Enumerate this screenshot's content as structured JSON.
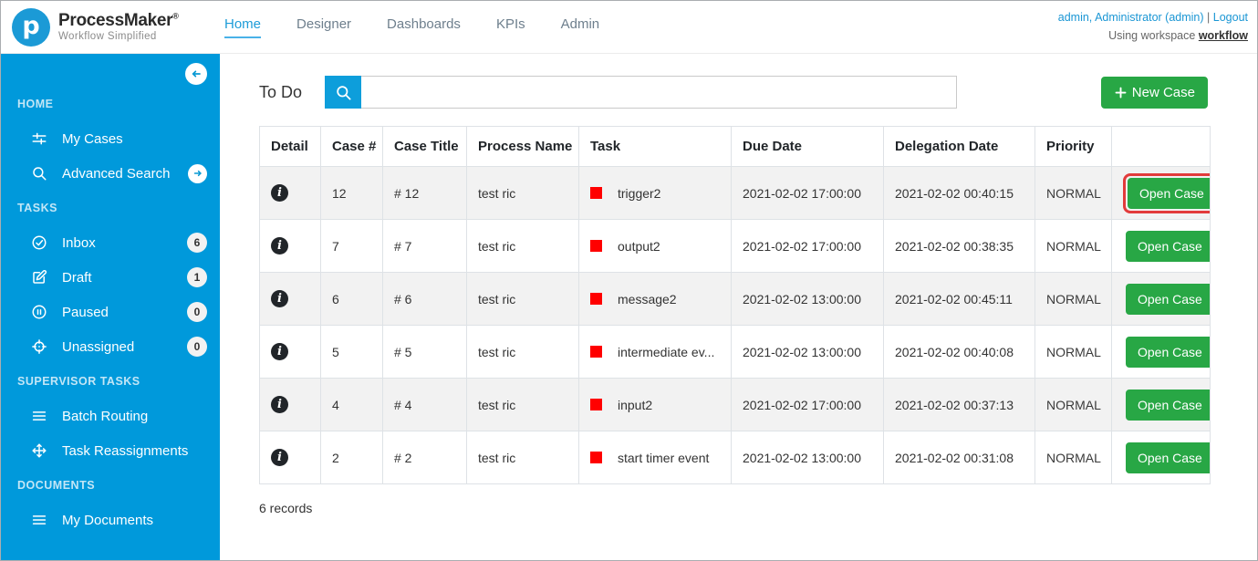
{
  "header": {
    "logo": {
      "brand": "ProcessMaker",
      "reg": "®",
      "tagline": "Workflow Simplified"
    },
    "nav": [
      {
        "label": "Home",
        "active": true
      },
      {
        "label": "Designer",
        "active": false
      },
      {
        "label": "Dashboards",
        "active": false
      },
      {
        "label": "KPIs",
        "active": false
      },
      {
        "label": "Admin",
        "active": false
      }
    ],
    "user": {
      "name": "admin, Administrator (admin)",
      "sep": "|",
      "logout": "Logout",
      "workspace_prefix": "Using workspace",
      "workspace_name": "workflow"
    }
  },
  "sidebar": {
    "sections": [
      {
        "title": "HOME",
        "items": [
          {
            "label": "My Cases",
            "icon": "sliders"
          },
          {
            "label": "Advanced Search",
            "icon": "search",
            "chevron": true
          }
        ]
      },
      {
        "title": "TASKS",
        "items": [
          {
            "label": "Inbox",
            "icon": "check-circle",
            "badge": "6"
          },
          {
            "label": "Draft",
            "icon": "edit",
            "badge": "1"
          },
          {
            "label": "Paused",
            "icon": "pause-circle",
            "badge": "0"
          },
          {
            "label": "Unassigned",
            "icon": "target",
            "badge": "0"
          }
        ]
      },
      {
        "title": "SUPERVISOR TASKS",
        "items": [
          {
            "label": "Batch Routing",
            "icon": "menu"
          },
          {
            "label": "Task Reassignments",
            "icon": "move"
          }
        ]
      },
      {
        "title": "DOCUMENTS",
        "items": [
          {
            "label": "My Documents",
            "icon": "menu"
          }
        ]
      }
    ]
  },
  "main": {
    "page_title": "To Do",
    "search": {
      "value": "",
      "placeholder": ""
    },
    "new_case_label": "New Case",
    "table": {
      "columns": [
        "Detail",
        "Case #",
        "Case Title",
        "Process Name",
        "Task",
        "Due Date",
        "Delegation Date",
        "Priority",
        ""
      ],
      "rows": [
        {
          "case_number": "12",
          "case_title": "# 12",
          "process_name": "test ric",
          "task": "trigger2",
          "due_date": "2021-02-02 17:00:00",
          "delegation_date": "2021-02-02 00:40:15",
          "priority": "NORMAL",
          "action": "Open Case",
          "highlighted": true
        },
        {
          "case_number": "7",
          "case_title": "# 7",
          "process_name": "test ric",
          "task": "output2",
          "due_date": "2021-02-02 17:00:00",
          "delegation_date": "2021-02-02 00:38:35",
          "priority": "NORMAL",
          "action": "Open Case",
          "highlighted": false
        },
        {
          "case_number": "6",
          "case_title": "# 6",
          "process_name": "test ric",
          "task": "message2",
          "due_date": "2021-02-02 13:00:00",
          "delegation_date": "2021-02-02 00:45:11",
          "priority": "NORMAL",
          "action": "Open Case",
          "highlighted": false
        },
        {
          "case_number": "5",
          "case_title": "# 5",
          "process_name": "test ric",
          "task": "intermediate ev...",
          "due_date": "2021-02-02 13:00:00",
          "delegation_date": "2021-02-02 00:40:08",
          "priority": "NORMAL",
          "action": "Open Case",
          "highlighted": false
        },
        {
          "case_number": "4",
          "case_title": "# 4",
          "process_name": "test ric",
          "task": "input2",
          "due_date": "2021-02-02 17:00:00",
          "delegation_date": "2021-02-02 00:37:13",
          "priority": "NORMAL",
          "action": "Open Case",
          "highlighted": false
        },
        {
          "case_number": "2",
          "case_title": "# 2",
          "process_name": "test ric",
          "task": "start timer event",
          "due_date": "2021-02-02 13:00:00",
          "delegation_date": "2021-02-02 00:31:08",
          "priority": "NORMAL",
          "action": "Open Case",
          "highlighted": false
        }
      ],
      "footer": "6 records"
    }
  },
  "colors": {
    "sidebar_blue": "#0099db",
    "accent_blue": "#1d9cd8",
    "button_green": "#28a745",
    "highlight_red": "#e23b3b",
    "task_square_red": "#ff0000"
  }
}
